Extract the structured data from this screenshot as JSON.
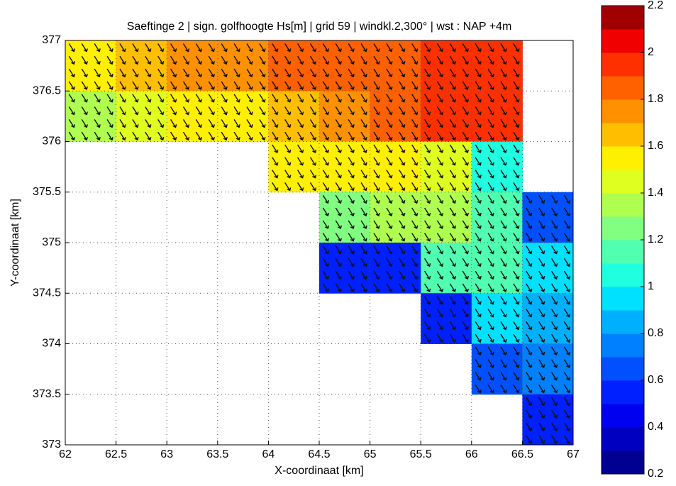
{
  "chart_data": {
    "type": "heatmap",
    "title": "Saeftinge 2 | sign. golfhoogte Hs[m] | grid 59 | windkl.2,300° | wst : NAP +4m",
    "xlabel": "X-coordinaat [km]",
    "ylabel": "Y-coordinaat [km]",
    "x": [
      62.25,
      62.75,
      63.25,
      63.75,
      64.25,
      64.75,
      65.25,
      65.75,
      66.25,
      66.75
    ],
    "y": [
      376.75,
      376.25,
      375.75,
      375.25,
      374.75,
      374.25,
      373.75,
      373.25
    ],
    "z": [
      [
        1.55,
        1.65,
        1.7,
        1.7,
        1.8,
        1.8,
        1.85,
        1.9,
        1.95,
        null
      ],
      [
        1.35,
        1.45,
        1.5,
        1.55,
        1.65,
        1.75,
        1.85,
        1.9,
        1.95,
        null
      ],
      [
        null,
        null,
        null,
        null,
        1.5,
        1.5,
        1.5,
        1.4,
        1.0,
        null
      ],
      [
        null,
        null,
        null,
        null,
        null,
        1.2,
        1.35,
        1.3,
        1.1,
        0.7
      ],
      [
        null,
        null,
        null,
        null,
        null,
        0.6,
        0.5,
        1.1,
        1.1,
        0.9
      ],
      [
        null,
        null,
        null,
        null,
        null,
        null,
        null,
        0.5,
        0.9,
        0.85
      ],
      [
        null,
        null,
        null,
        null,
        null,
        null,
        null,
        null,
        0.7,
        0.75
      ],
      [
        null,
        null,
        null,
        null,
        null,
        null,
        null,
        null,
        null,
        0.6
      ]
    ],
    "xlim": [
      62,
      67
    ],
    "ylim": [
      373,
      377
    ],
    "xticks": [
      62,
      62.5,
      63,
      63.5,
      64,
      64.5,
      65,
      65.5,
      66,
      66.5,
      67
    ],
    "yticks": [
      373,
      373.5,
      374,
      374.5,
      375,
      375.5,
      376,
      376.5,
      377
    ],
    "grid": true,
    "clim": [
      0.2,
      2.2
    ],
    "cticks": [
      0.2,
      0.4,
      0.6,
      0.8,
      1,
      1.2,
      1.4,
      1.6,
      1.8,
      2,
      2.2
    ],
    "colormap": [
      "#000090",
      "#0000c0",
      "#0000f0",
      "#0020ff",
      "#0050ff",
      "#0080ff",
      "#00b0ff",
      "#00e0ff",
      "#20ffdf",
      "#50ffaf",
      "#80ff80",
      "#afff50",
      "#dfff20",
      "#ffef00",
      "#ffbf00",
      "#ff9000",
      "#ff6000",
      "#ff3000",
      "#f00000",
      "#a00000"
    ]
  }
}
